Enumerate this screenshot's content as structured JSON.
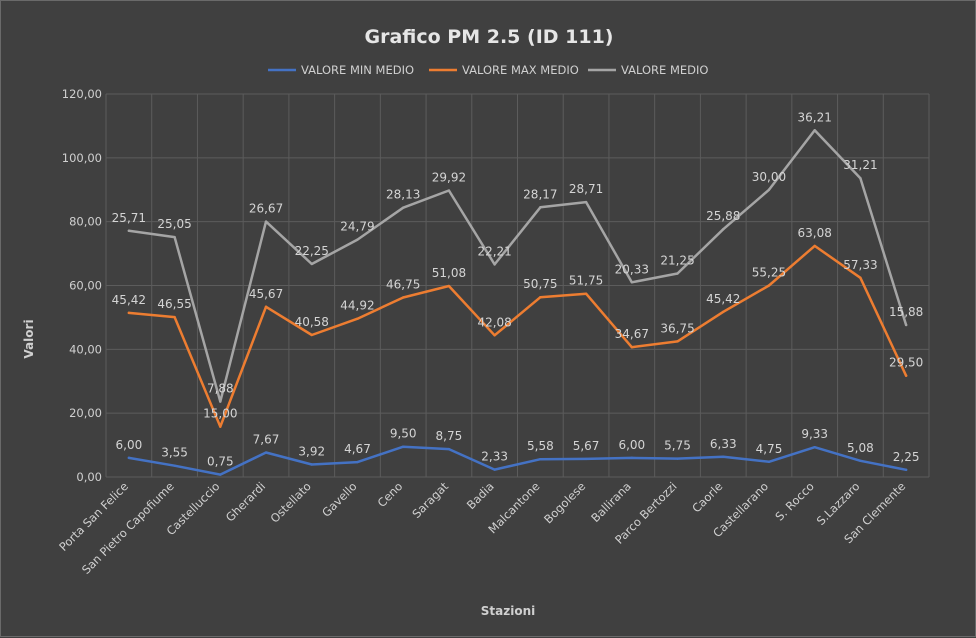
{
  "chart_data": {
    "type": "line",
    "title": "Grafico PM 2.5 (ID 111)",
    "xlabel": "Stazioni",
    "ylabel": "Valori",
    "ylim": [
      0,
      120
    ],
    "yticks": [
      "0,00",
      "20,00",
      "40,00",
      "60,00",
      "80,00",
      "100,00",
      "120,00"
    ],
    "grid": true,
    "legend_position": "top",
    "categories": [
      "Porta San Felice",
      "San Pietro Capofiume",
      "Castelluccio",
      "Gherardi",
      "Ostellato",
      "Gavello",
      "Ceno",
      "Saragat",
      "Badia",
      "Malcantone",
      "Bogolese",
      "Ballirana",
      "Parco Bertozzi",
      "Caorle",
      "Castellarano",
      "S. Rocco",
      "S.Lazzaro",
      "San Clemente"
    ],
    "series": [
      {
        "name": "VALORE MIN MEDIO",
        "color": "#4472c4",
        "values": [
          6.0,
          3.55,
          0.75,
          7.67,
          3.92,
          4.67,
          9.5,
          8.75,
          2.33,
          5.58,
          5.67,
          6.0,
          5.75,
          6.33,
          4.75,
          9.33,
          5.08,
          2.25
        ],
        "labels": [
          "6,00",
          "3,55",
          "0,75",
          "7,67",
          "3,92",
          "4,67",
          "9,50",
          "8,75",
          "2,33",
          "5,58",
          "5,67",
          "6,00",
          "5,75",
          "6,33",
          "4,75",
          "9,33",
          "5,08",
          "2,25"
        ]
      },
      {
        "name": "VALORE MAX MEDIO",
        "color": "#ed7d31",
        "values": [
          51.42,
          50.1,
          15.75,
          53.34,
          44.5,
          49.59,
          56.25,
          59.83,
          44.41,
          56.33,
          57.42,
          40.67,
          42.5,
          51.75,
          60.0,
          72.41,
          62.41,
          31.75
        ],
        "labels": [
          "45,42",
          "46,55",
          "15,00",
          "45,67",
          "40,58",
          "44,92",
          "46,75",
          "51,08",
          "42,08",
          "50,75",
          "51,75",
          "34,67",
          "36,75",
          "45,42",
          "55,25",
          "63,08",
          "57,33",
          "29,50"
        ]
      },
      {
        "name": "VALORE MEDIO",
        "color": "#a5a5a5",
        "values": [
          77.13,
          75.15,
          23.63,
          80.01,
          66.75,
          74.38,
          84.38,
          89.75,
          66.62,
          84.5,
          86.13,
          61.0,
          63.75,
          77.63,
          90.0,
          108.62,
          93.62,
          47.63
        ],
        "labels": [
          "25,71",
          "25,05",
          "7,88",
          "26,67",
          "22,25",
          "24,79",
          "28,13",
          "29,92",
          "22,21",
          "28,17",
          "28,71",
          "20,33",
          "21,25",
          "25,88",
          "30,00",
          "36,21",
          "31,21",
          "15,88"
        ]
      }
    ]
  }
}
